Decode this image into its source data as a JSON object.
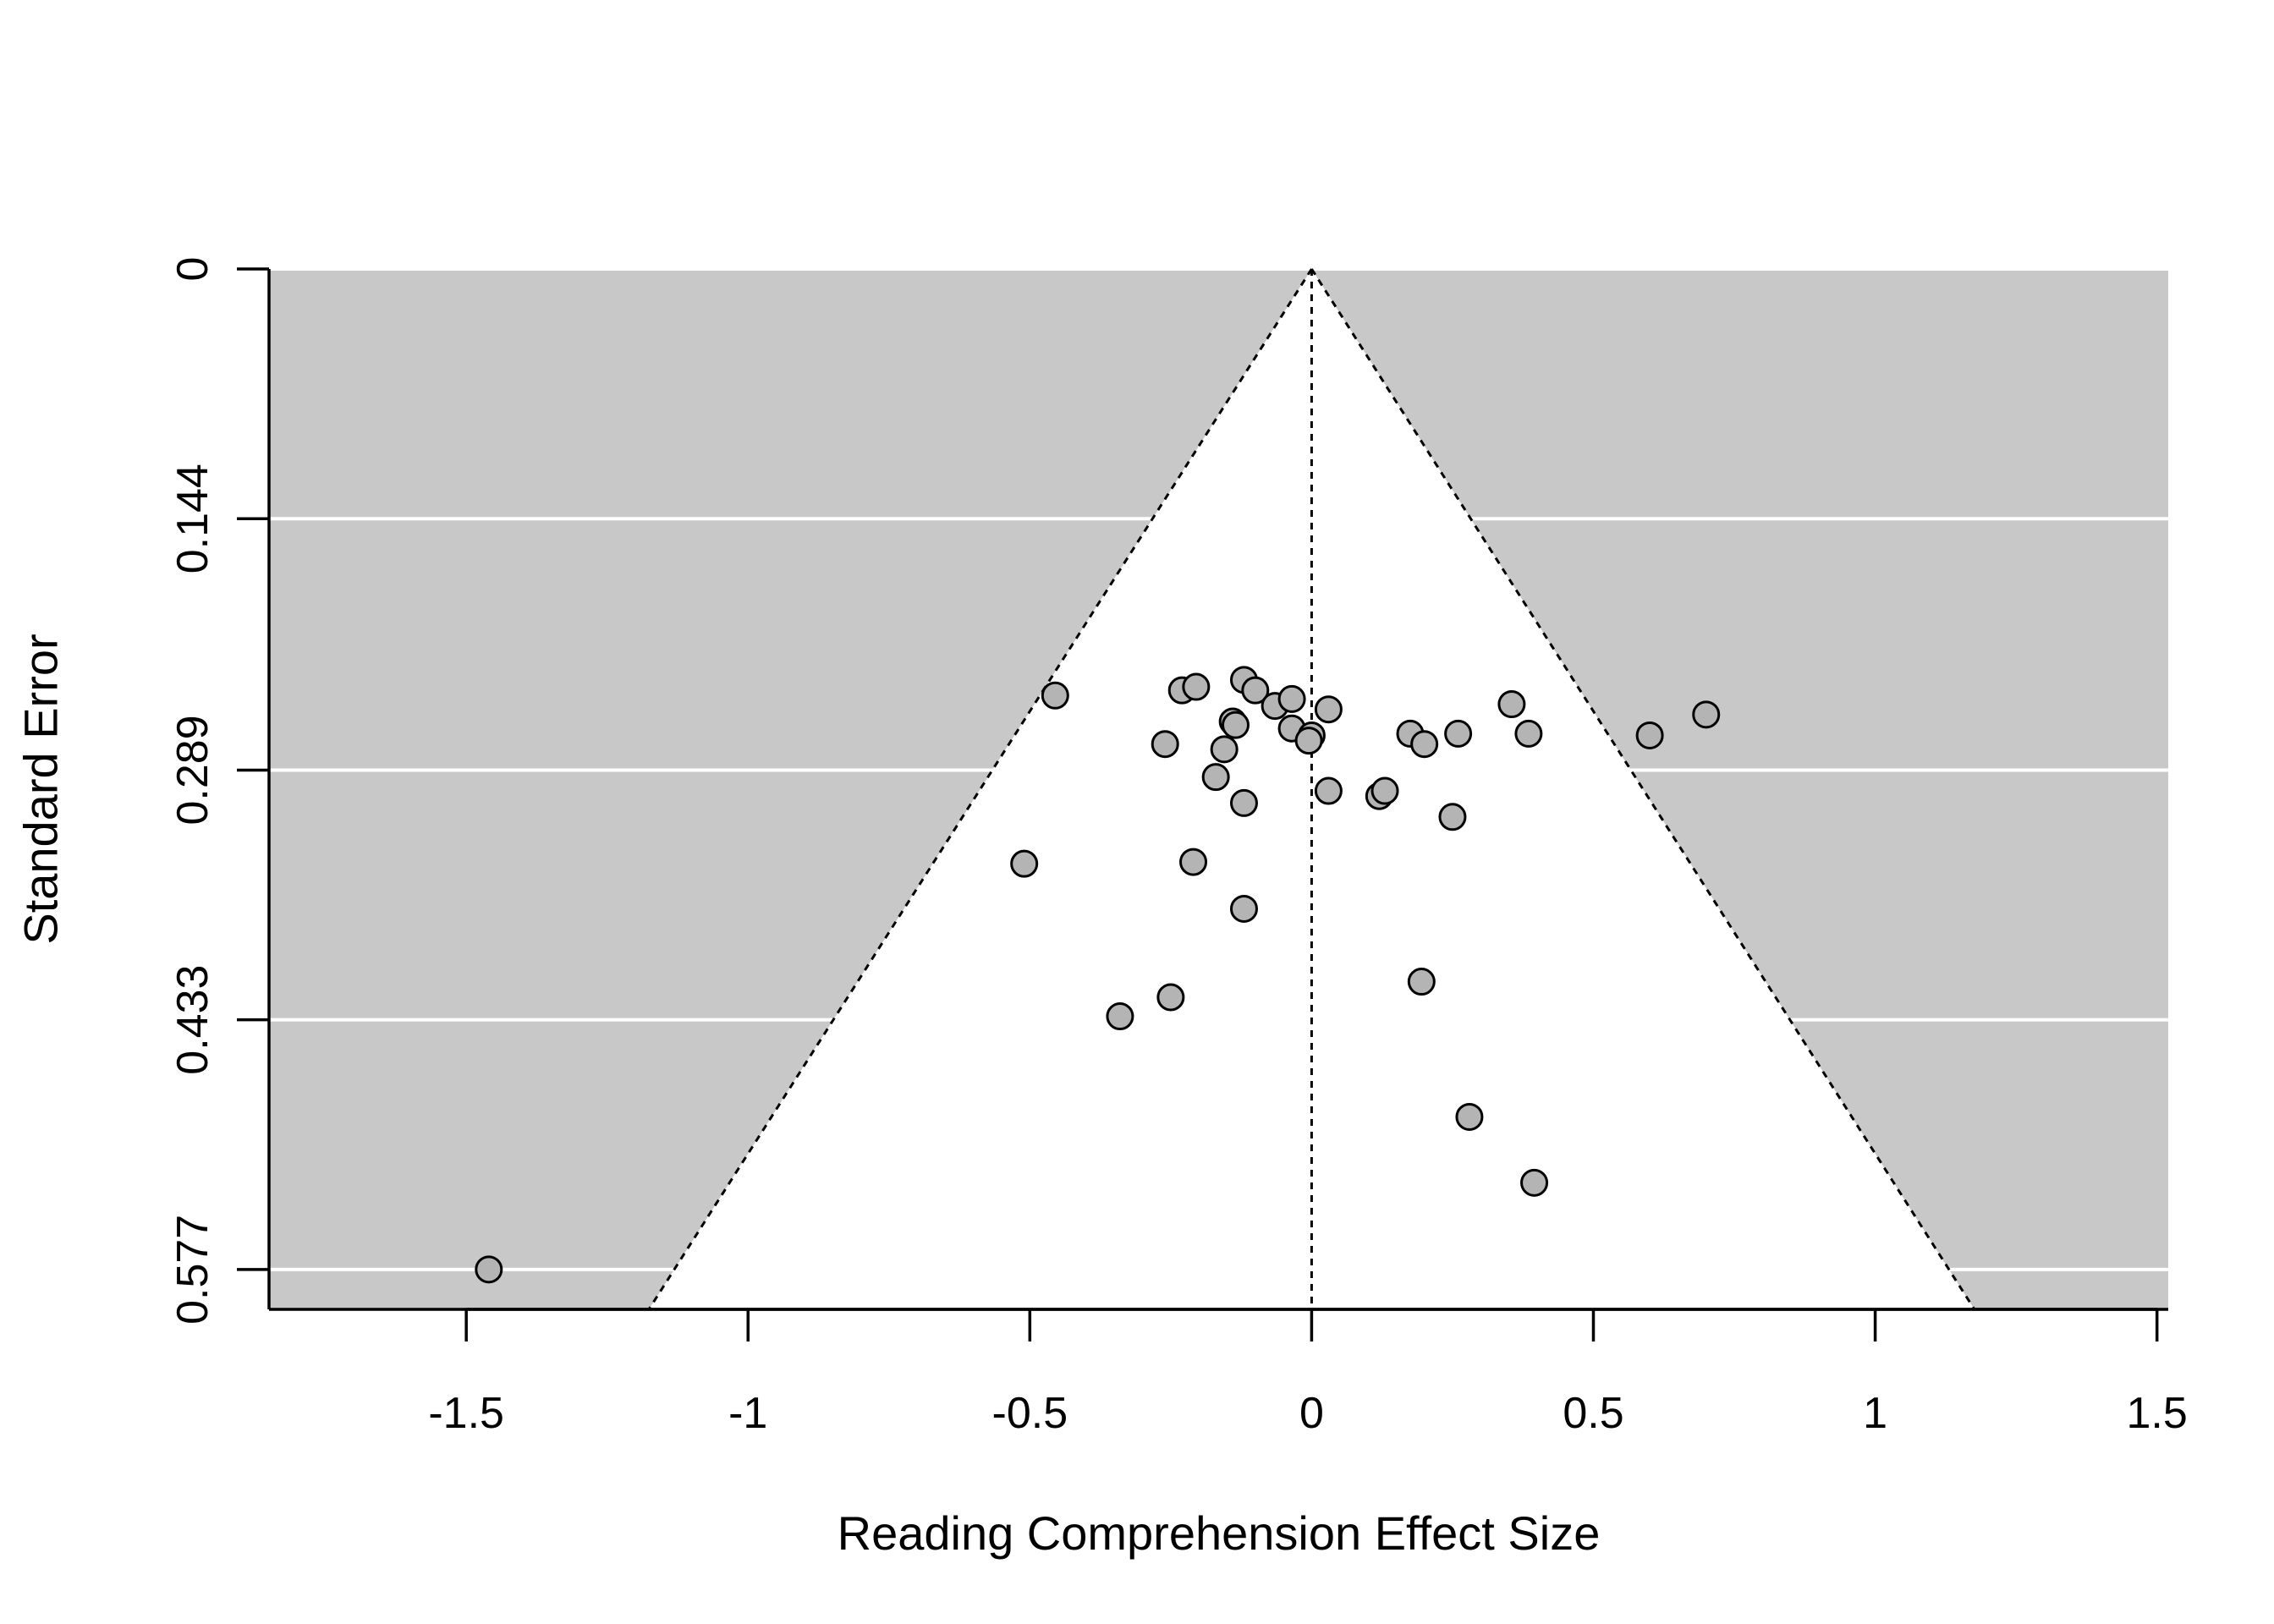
{
  "chart_data": {
    "type": "scatter",
    "subtype": "funnel",
    "title": "",
    "xlabel": "Reading Comprehension Effect Size",
    "ylabel": "Standard Error",
    "xlim": [
      -1.85,
      1.52
    ],
    "ylim": [
      0,
      0.6
    ],
    "y_reversed": true,
    "x_ticks": [
      -1.5,
      -1,
      -0.5,
      0,
      0.5,
      1,
      1.5
    ],
    "x_tick_labels": [
      "-1.5",
      "-1",
      "-0.5",
      "0",
      "0.5",
      "1",
      "1.5"
    ],
    "y_ticks": [
      0,
      0.144,
      0.289,
      0.433,
      0.577
    ],
    "y_tick_labels": [
      "0",
      "0.144",
      "0.289",
      "0.433",
      "0.577"
    ],
    "grid": "horizontal",
    "center_line": 0,
    "funnel_multiplier": 1.96,
    "colors": {
      "outside_region": "#c8c8c8",
      "inside_region": "#ffffff",
      "gridline": "#ffffff",
      "point_fill": "#b4b4b4",
      "point_stroke": "#000000"
    },
    "points": [
      {
        "x": -1.46,
        "y": 0.577
      },
      {
        "x": -0.51,
        "y": 0.343
      },
      {
        "x": -0.455,
        "y": 0.246
      },
      {
        "x": -0.34,
        "y": 0.431
      },
      {
        "x": -0.25,
        "y": 0.42
      },
      {
        "x": -0.26,
        "y": 0.274
      },
      {
        "x": -0.23,
        "y": 0.243
      },
      {
        "x": -0.21,
        "y": 0.342
      },
      {
        "x": -0.205,
        "y": 0.241
      },
      {
        "x": -0.17,
        "y": 0.293
      },
      {
        "x": -0.155,
        "y": 0.277
      },
      {
        "x": -0.14,
        "y": 0.261
      },
      {
        "x": -0.135,
        "y": 0.263
      },
      {
        "x": -0.12,
        "y": 0.237
      },
      {
        "x": -0.12,
        "y": 0.308
      },
      {
        "x": -0.12,
        "y": 0.369
      },
      {
        "x": -0.1,
        "y": 0.243
      },
      {
        "x": -0.065,
        "y": 0.252
      },
      {
        "x": -0.035,
        "y": 0.248
      },
      {
        "x": -0.035,
        "y": 0.265
      },
      {
        "x": 0.0,
        "y": 0.269
      },
      {
        "x": -0.005,
        "y": 0.272
      },
      {
        "x": 0.03,
        "y": 0.254
      },
      {
        "x": 0.03,
        "y": 0.301
      },
      {
        "x": 0.12,
        "y": 0.304
      },
      {
        "x": 0.13,
        "y": 0.301
      },
      {
        "x": 0.175,
        "y": 0.268
      },
      {
        "x": 0.195,
        "y": 0.411
      },
      {
        "x": 0.2,
        "y": 0.274
      },
      {
        "x": 0.25,
        "y": 0.316
      },
      {
        "x": 0.26,
        "y": 0.268
      },
      {
        "x": 0.28,
        "y": 0.489
      },
      {
        "x": 0.355,
        "y": 0.251
      },
      {
        "x": 0.385,
        "y": 0.268
      },
      {
        "x": 0.395,
        "y": 0.527
      },
      {
        "x": 0.6,
        "y": 0.269
      },
      {
        "x": 0.7,
        "y": 0.257
      }
    ]
  }
}
